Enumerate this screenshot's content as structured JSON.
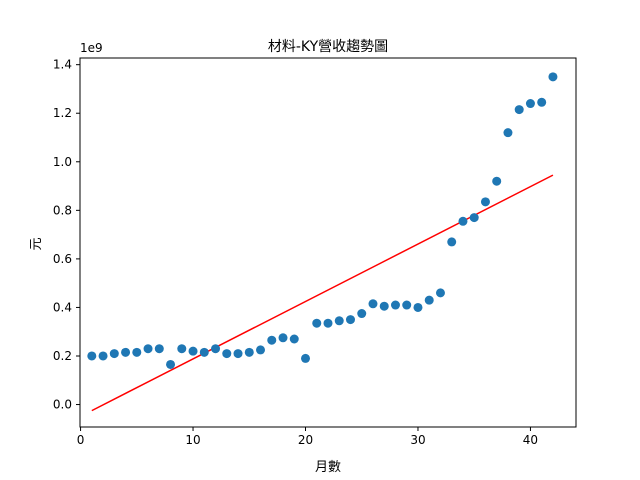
{
  "chart_data": {
    "type": "scatter",
    "title": "材料-KY營收趨勢圖",
    "xlabel": "月數",
    "ylabel": "元",
    "y_offset_label": "1e9",
    "xlim": [
      -0.05,
      44.05
    ],
    "ylim": [
      -0.0925,
      1.4275
    ],
    "x_ticks": [
      0,
      10,
      20,
      30,
      40
    ],
    "x_tick_labels": [
      "0",
      "10",
      "20",
      "30",
      "40"
    ],
    "y_ticks": [
      0.0,
      0.2,
      0.4,
      0.6,
      0.8,
      1.0,
      1.2,
      1.4
    ],
    "y_tick_labels": [
      "0.0",
      "0.2",
      "0.4",
      "0.6",
      "0.8",
      "1.0",
      "1.2",
      "1.4"
    ],
    "grid": false,
    "legend": "none",
    "series": [
      {
        "kind": "scatter",
        "color": "#1f77b4",
        "x": [
          1,
          2,
          3,
          4,
          5,
          6,
          7,
          8,
          9,
          10,
          11,
          12,
          13,
          14,
          15,
          16,
          17,
          18,
          19,
          20,
          21,
          22,
          23,
          24,
          25,
          26,
          27,
          28,
          29,
          30,
          31,
          32,
          33,
          34,
          35,
          36,
          37,
          38,
          39,
          40,
          41,
          42
        ],
        "y": [
          0.2,
          0.2,
          0.21,
          0.215,
          0.215,
          0.23,
          0.23,
          0.165,
          0.23,
          0.22,
          0.215,
          0.23,
          0.21,
          0.21,
          0.215,
          0.225,
          0.265,
          0.275,
          0.27,
          0.19,
          0.335,
          0.335,
          0.345,
          0.35,
          0.375,
          0.415,
          0.405,
          0.41,
          0.41,
          0.4,
          0.43,
          0.46,
          0.67,
          0.755,
          0.77,
          0.835,
          0.92,
          1.12,
          1.215,
          1.24,
          1.245,
          1.35
        ]
      },
      {
        "kind": "line",
        "color": "#ff0000",
        "x": [
          1,
          42
        ],
        "y": [
          -0.025,
          0.945
        ]
      }
    ]
  }
}
